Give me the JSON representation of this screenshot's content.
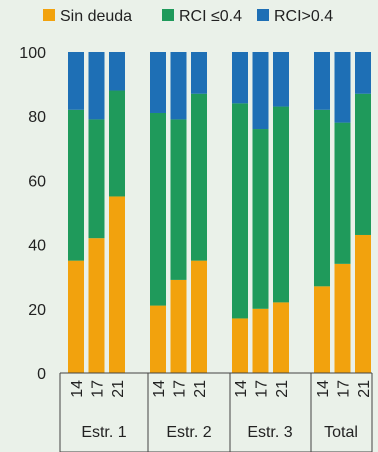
{
  "chart_data": {
    "type": "bar",
    "stacked": true,
    "ylim": [
      0,
      100
    ],
    "yticks": [
      0,
      20,
      40,
      60,
      80,
      100
    ],
    "xlabel": "",
    "ylabel": "",
    "legend_position": "top",
    "groups": [
      {
        "label": "Estr. 1",
        "years": [
          "14",
          "17",
          "21"
        ]
      },
      {
        "label": "Estr. 2",
        "years": [
          "14",
          "17",
          "21"
        ]
      },
      {
        "label": "Estr. 3",
        "years": [
          "14",
          "17",
          "21"
        ]
      },
      {
        "label": "Total",
        "years": [
          "14",
          "17",
          "21"
        ]
      }
    ],
    "series": [
      {
        "name": "Sin deuda",
        "color": "#f2a20d",
        "values": [
          35,
          42,
          55,
          21,
          29,
          35,
          17,
          20,
          22,
          27,
          34,
          43
        ]
      },
      {
        "name": "RCI ≤0.4",
        "color": "#1f9a5b",
        "values": [
          47,
          37,
          33,
          60,
          50,
          52,
          67,
          56,
          61,
          55,
          44,
          44
        ]
      },
      {
        "name": "RCI>0.4",
        "color": "#1e6fb5",
        "values": [
          18,
          21,
          12,
          19,
          21,
          13,
          16,
          24,
          17,
          18,
          22,
          13
        ]
      }
    ]
  }
}
